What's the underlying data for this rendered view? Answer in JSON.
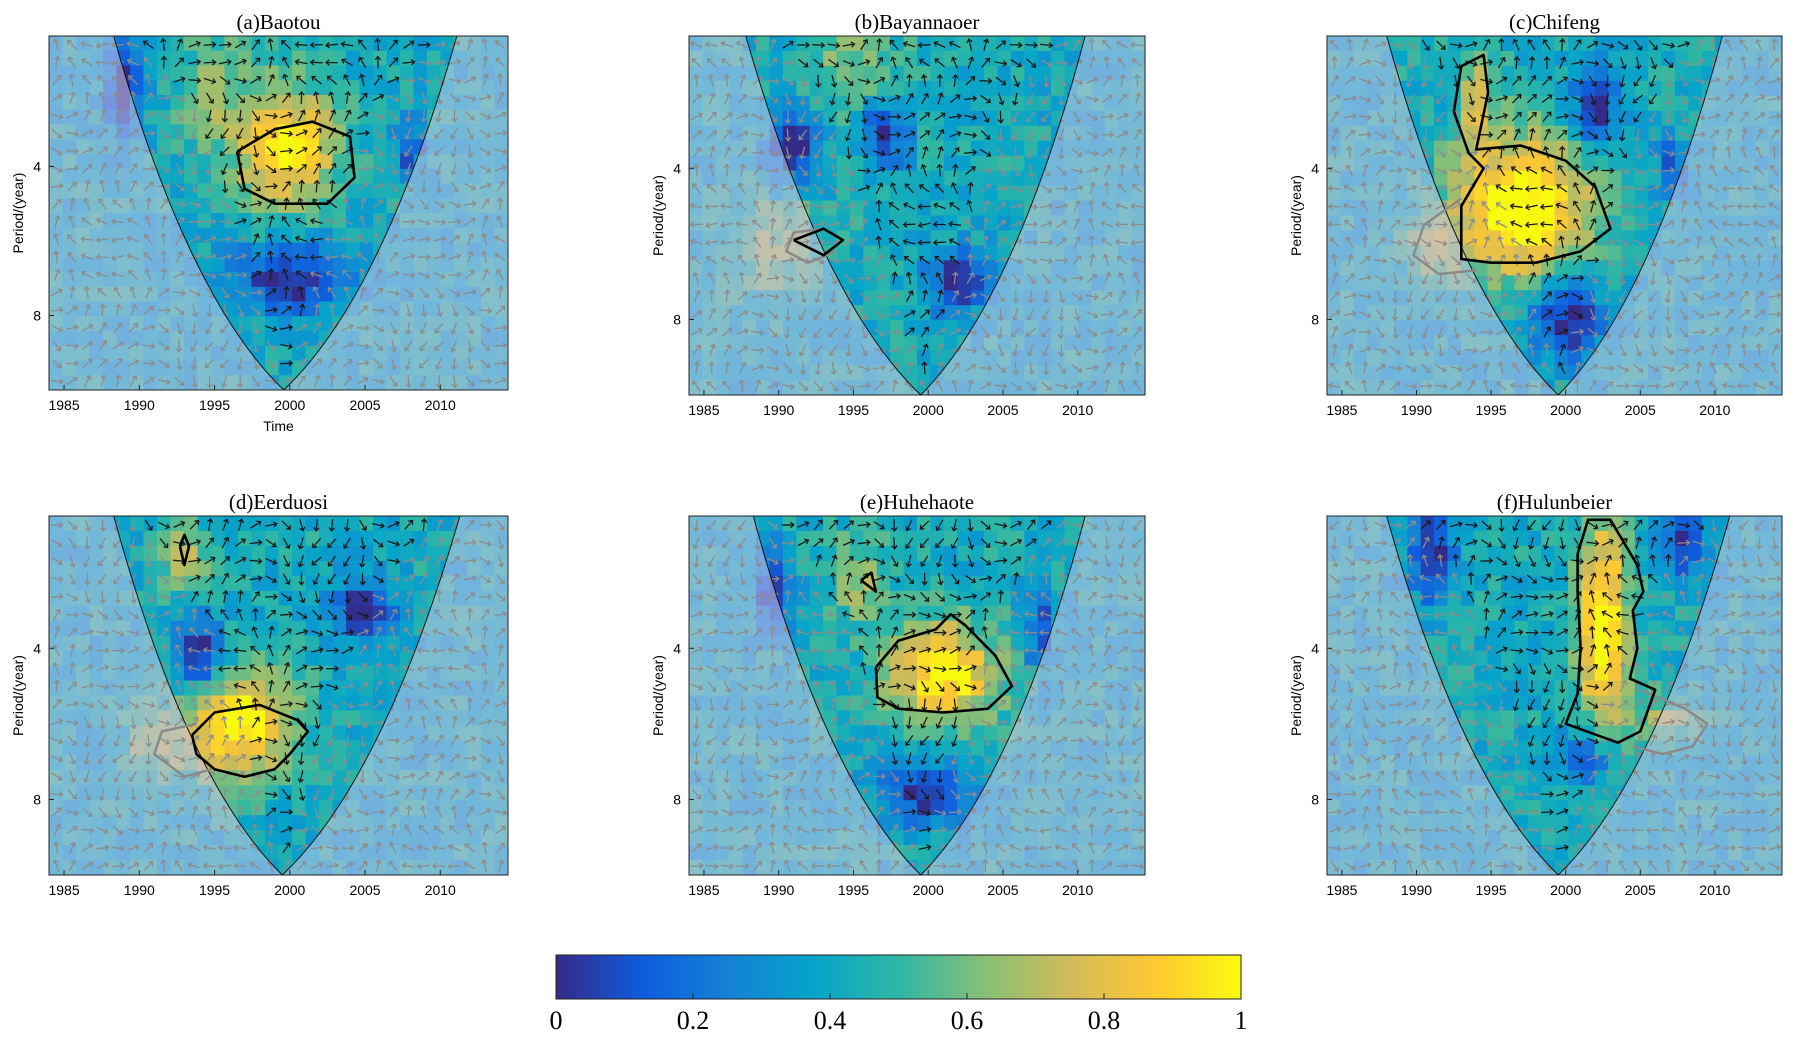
{
  "chart_data": {
    "type": "heatmap",
    "description_kind": "wavelet coherence panels",
    "x_range": [
      1984,
      2014.5
    ],
    "y_range": [
      0.5,
      10
    ],
    "x_ticks": [
      1985,
      1990,
      1995,
      2000,
      2005,
      2010
    ],
    "y_ticks": [
      4,
      8
    ],
    "value_range": [
      0,
      1
    ],
    "panels": [
      {
        "title": "(a)Baotou",
        "ylabel": "Period/(year)",
        "xlabel": "Time",
        "coi": {
          "left_top_x": 1988.3,
          "right_top_x": 2011.1,
          "bottom_x": 1999.6,
          "bottom_y": 10
        },
        "blobs": [
          {
            "x": 1999.8,
            "y": 3.5,
            "sx": 3.2,
            "sy": 1.6,
            "v": 0.55
          },
          {
            "x": 1995.0,
            "y": 2.0,
            "sx": 2.5,
            "sy": 1.5,
            "v": 0.2
          },
          {
            "x": 2000.0,
            "y": 7.0,
            "sx": 4.0,
            "sy": 0.9,
            "v": -0.45
          },
          {
            "x": 1989.0,
            "y": 1.8,
            "sx": 1.2,
            "sy": 1.2,
            "v": -0.5
          },
          {
            "x": 2008.0,
            "y": 3.5,
            "sx": 1.0,
            "sy": 0.9,
            "v": -0.3
          }
        ],
        "contours_black": [
          [
            [
              1996.5,
              3.6
            ],
            [
              1999.0,
              3.0
            ],
            [
              2001.5,
              2.8
            ],
            [
              2004.0,
              3.2
            ],
            [
              2004.3,
              4.3
            ],
            [
              2002.5,
              5.0
            ],
            [
              1999.0,
              5.0
            ],
            [
              1997.0,
              4.6
            ],
            [
              1996.5,
              3.6
            ]
          ]
        ],
        "contours_gray": []
      },
      {
        "title": "(b)Bayannaoer",
        "ylabel": "Period/(year)",
        "xlabel": "",
        "coi": {
          "left_top_x": 1987.8,
          "right_top_x": 2010.5,
          "bottom_x": 1999.5,
          "bottom_y": 10
        },
        "blobs": [
          {
            "x": 1995.0,
            "y": 1.5,
            "sx": 3.5,
            "sy": 1.5,
            "v": 0.2
          },
          {
            "x": 1991.0,
            "y": 3.5,
            "sx": 1.8,
            "sy": 1.0,
            "v": -0.45
          },
          {
            "x": 1997.0,
            "y": 3.0,
            "sx": 1.5,
            "sy": 0.9,
            "v": -0.45
          },
          {
            "x": 2002.0,
            "y": 7.0,
            "sx": 2.0,
            "sy": 0.8,
            "v": -0.45
          },
          {
            "x": 1990.0,
            "y": 6.0,
            "sx": 3.0,
            "sy": 1.5,
            "v": 0.25
          }
        ],
        "contours_black": [
          [
            [
              1991.0,
              5.9
            ],
            [
              1993.0,
              5.6
            ],
            [
              1994.3,
              5.9
            ],
            [
              1993.0,
              6.3
            ],
            [
              1991.0,
              5.9
            ]
          ]
        ],
        "contours_gray": [
          [
            [
              1993.0,
              5.6
            ],
            [
              1991.0,
              5.7
            ],
            [
              1990.5,
              6.2
            ],
            [
              1992.0,
              6.5
            ],
            [
              1993.8,
              6.2
            ]
          ]
        ]
      },
      {
        "title": "(c)Chifeng",
        "ylabel": "Period/(year)",
        "xlabel": "",
        "coi": {
          "left_top_x": 1988.0,
          "right_top_x": 2010.5,
          "bottom_x": 1999.5,
          "bottom_y": 10
        },
        "blobs": [
          {
            "x": 1997.0,
            "y": 5.0,
            "sx": 4.5,
            "sy": 1.8,
            "v": 0.7
          },
          {
            "x": 1994.0,
            "y": 2.0,
            "sx": 1.3,
            "sy": 1.2,
            "v": 0.3
          },
          {
            "x": 2002.0,
            "y": 2.5,
            "sx": 1.5,
            "sy": 1.0,
            "v": -0.45
          },
          {
            "x": 2000.0,
            "y": 8.0,
            "sx": 2.5,
            "sy": 1.0,
            "v": -0.45
          },
          {
            "x": 2007.0,
            "y": 4.0,
            "sx": 1.0,
            "sy": 0.8,
            "v": -0.3
          },
          {
            "x": 1991.0,
            "y": 6.2,
            "sx": 2.0,
            "sy": 0.8,
            "v": 0.25
          }
        ],
        "contours_black": [
          [
            [
              1992.5,
              2.5
            ],
            [
              1993.0,
              1.3
            ],
            [
              1994.5,
              1.0
            ],
            [
              1994.8,
              2.0
            ],
            [
              1994.0,
              3.5
            ],
            [
              1997.0,
              3.4
            ],
            [
              2000.0,
              3.8
            ],
            [
              2002.0,
              4.5
            ],
            [
              2003.0,
              5.6
            ],
            [
              2001.0,
              6.2
            ],
            [
              1998.0,
              6.5
            ],
            [
              1995.0,
              6.5
            ],
            [
              1993.0,
              6.4
            ],
            [
              1993.0,
              5.0
            ],
            [
              1994.5,
              4.0
            ],
            [
              1993.5,
              3.6
            ],
            [
              1992.5,
              2.5
            ]
          ]
        ],
        "contours_gray": [
          [
            [
              1993.0,
              4.8
            ],
            [
              1990.5,
              5.5
            ],
            [
              1989.8,
              6.3
            ],
            [
              1991.5,
              6.8
            ],
            [
              1994.0,
              6.7
            ]
          ]
        ]
      },
      {
        "title": "(d)Eerduosi",
        "ylabel": "Period/(year)",
        "xlabel": "",
        "coi": {
          "left_top_x": 1988.3,
          "right_top_x": 2011.3,
          "bottom_x": 1999.5,
          "bottom_y": 10
        },
        "blobs": [
          {
            "x": 1996.5,
            "y": 6.0,
            "sx": 3.5,
            "sy": 1.4,
            "v": 0.6
          },
          {
            "x": 1993.0,
            "y": 1.5,
            "sx": 1.5,
            "sy": 1.0,
            "v": 0.3
          },
          {
            "x": 1994.0,
            "y": 4.2,
            "sx": 1.5,
            "sy": 1.0,
            "v": -0.45
          },
          {
            "x": 2005.0,
            "y": 3.0,
            "sx": 2.0,
            "sy": 0.8,
            "v": -0.45
          },
          {
            "x": 1991.0,
            "y": 6.5,
            "sx": 2.0,
            "sy": 1.0,
            "v": 0.25
          }
        ],
        "contours_black": [
          [
            [
              1993.5,
              6.3
            ],
            [
              1995.0,
              5.7
            ],
            [
              1998.0,
              5.5
            ],
            [
              2000.5,
              5.9
            ],
            [
              2001.2,
              6.2
            ],
            [
              2000.0,
              6.8
            ],
            [
              1999.0,
              7.2
            ],
            [
              1997.0,
              7.4
            ],
            [
              1995.0,
              7.2
            ],
            [
              1993.8,
              6.8
            ],
            [
              1993.5,
              6.3
            ]
          ],
          [
            [
              1992.7,
              1.3
            ],
            [
              1993.0,
              1.0
            ],
            [
              1993.3,
              1.3
            ],
            [
              1993.0,
              1.8
            ],
            [
              1992.7,
              1.3
            ]
          ]
        ],
        "contours_gray": [
          [
            [
              1993.8,
              6.0
            ],
            [
              1991.5,
              6.2
            ],
            [
              1991.0,
              6.8
            ],
            [
              1993.0,
              7.4
            ],
            [
              1994.8,
              7.2
            ]
          ]
        ]
      },
      {
        "title": "(e)Huhehaote",
        "ylabel": "Period/(year)",
        "xlabel": "",
        "coi": {
          "left_top_x": 1988.3,
          "right_top_x": 2010.5,
          "bottom_x": 1999.5,
          "bottom_y": 10
        },
        "blobs": [
          {
            "x": 2001.0,
            "y": 4.7,
            "sx": 3.5,
            "sy": 1.3,
            "v": 0.6
          },
          {
            "x": 1995.5,
            "y": 2.2,
            "sx": 2.0,
            "sy": 1.2,
            "v": 0.25
          },
          {
            "x": 1989.5,
            "y": 2.5,
            "sx": 1.3,
            "sy": 1.0,
            "v": -0.45
          },
          {
            "x": 2000.0,
            "y": 7.8,
            "sx": 3.0,
            "sy": 0.8,
            "v": -0.45
          },
          {
            "x": 2007.5,
            "y": 3.5,
            "sx": 1.0,
            "sy": 1.0,
            "v": -0.35
          }
        ],
        "contours_black": [
          [
            [
              1996.5,
              4.5
            ],
            [
              1998.0,
              3.8
            ],
            [
              2000.5,
              3.5
            ],
            [
              2001.5,
              3.1
            ],
            [
              2002.5,
              3.4
            ],
            [
              2004.5,
              4.2
            ],
            [
              2005.6,
              5.0
            ],
            [
              2004.0,
              5.6
            ],
            [
              2001.0,
              5.7
            ],
            [
              1998.0,
              5.6
            ],
            [
              1996.6,
              5.3
            ],
            [
              1996.5,
              4.5
            ]
          ],
          [
            [
              1995.5,
              2.2
            ],
            [
              1996.2,
              2.0
            ],
            [
              1996.5,
              2.5
            ],
            [
              1995.5,
              2.2
            ]
          ]
        ],
        "contours_gray": []
      },
      {
        "title": "(f)Hulunbeier",
        "ylabel": "Period/(year)",
        "xlabel": "",
        "coi": {
          "left_top_x": 1988.0,
          "right_top_x": 2011.0,
          "bottom_x": 1999.5,
          "bottom_y": 10
        },
        "blobs": [
          {
            "x": 2002.5,
            "y": 3.5,
            "sx": 1.6,
            "sy": 2.8,
            "v": 0.65
          },
          {
            "x": 1991.0,
            "y": 1.5,
            "sx": 1.5,
            "sy": 1.2,
            "v": -0.45
          },
          {
            "x": 2008.0,
            "y": 1.2,
            "sx": 1.5,
            "sy": 0.9,
            "v": -0.45
          },
          {
            "x": 2001.5,
            "y": 7.0,
            "sx": 2.0,
            "sy": 0.8,
            "v": -0.3
          },
          {
            "x": 2006.5,
            "y": 6.0,
            "sx": 2.5,
            "sy": 0.8,
            "v": 0.25
          }
        ],
        "contours_black": [
          [
            [
              2000.8,
              1.5
            ],
            [
              2001.5,
              0.6
            ],
            [
              2003.0,
              0.6
            ],
            [
              2004.8,
              1.8
            ],
            [
              2005.2,
              2.5
            ],
            [
              2004.5,
              3.0
            ],
            [
              2004.8,
              4.0
            ],
            [
              2004.3,
              4.8
            ],
            [
              2006.0,
              5.1
            ],
            [
              2005.0,
              6.2
            ],
            [
              2003.5,
              6.5
            ],
            [
              2000.0,
              6.0
            ],
            [
              2000.8,
              5.2
            ],
            [
              2001.0,
              4.0
            ],
            [
              2000.8,
              2.5
            ],
            [
              2000.8,
              1.5
            ]
          ]
        ],
        "contours_gray": [
          [
            [
              2005.0,
              5.1
            ],
            [
              2008.0,
              5.6
            ],
            [
              2009.5,
              6.0
            ],
            [
              2008.5,
              6.6
            ],
            [
              2006.5,
              6.8
            ],
            [
              2004.5,
              6.6
            ]
          ]
        ]
      }
    ],
    "colorbar": {
      "min": 0,
      "max": 1,
      "ticks": [
        0,
        0.2,
        0.4,
        0.6,
        0.8,
        1
      ],
      "tick_labels": [
        "0",
        "0.2",
        "0.4",
        "0.6",
        "0.8",
        "1"
      ],
      "colors": [
        "#352a87",
        "#0f5cdd",
        "#1481d6",
        "#06a4ca",
        "#2eb7a4",
        "#87bf77",
        "#d1bb59",
        "#fec832",
        "#f9fb0e"
      ]
    }
  }
}
